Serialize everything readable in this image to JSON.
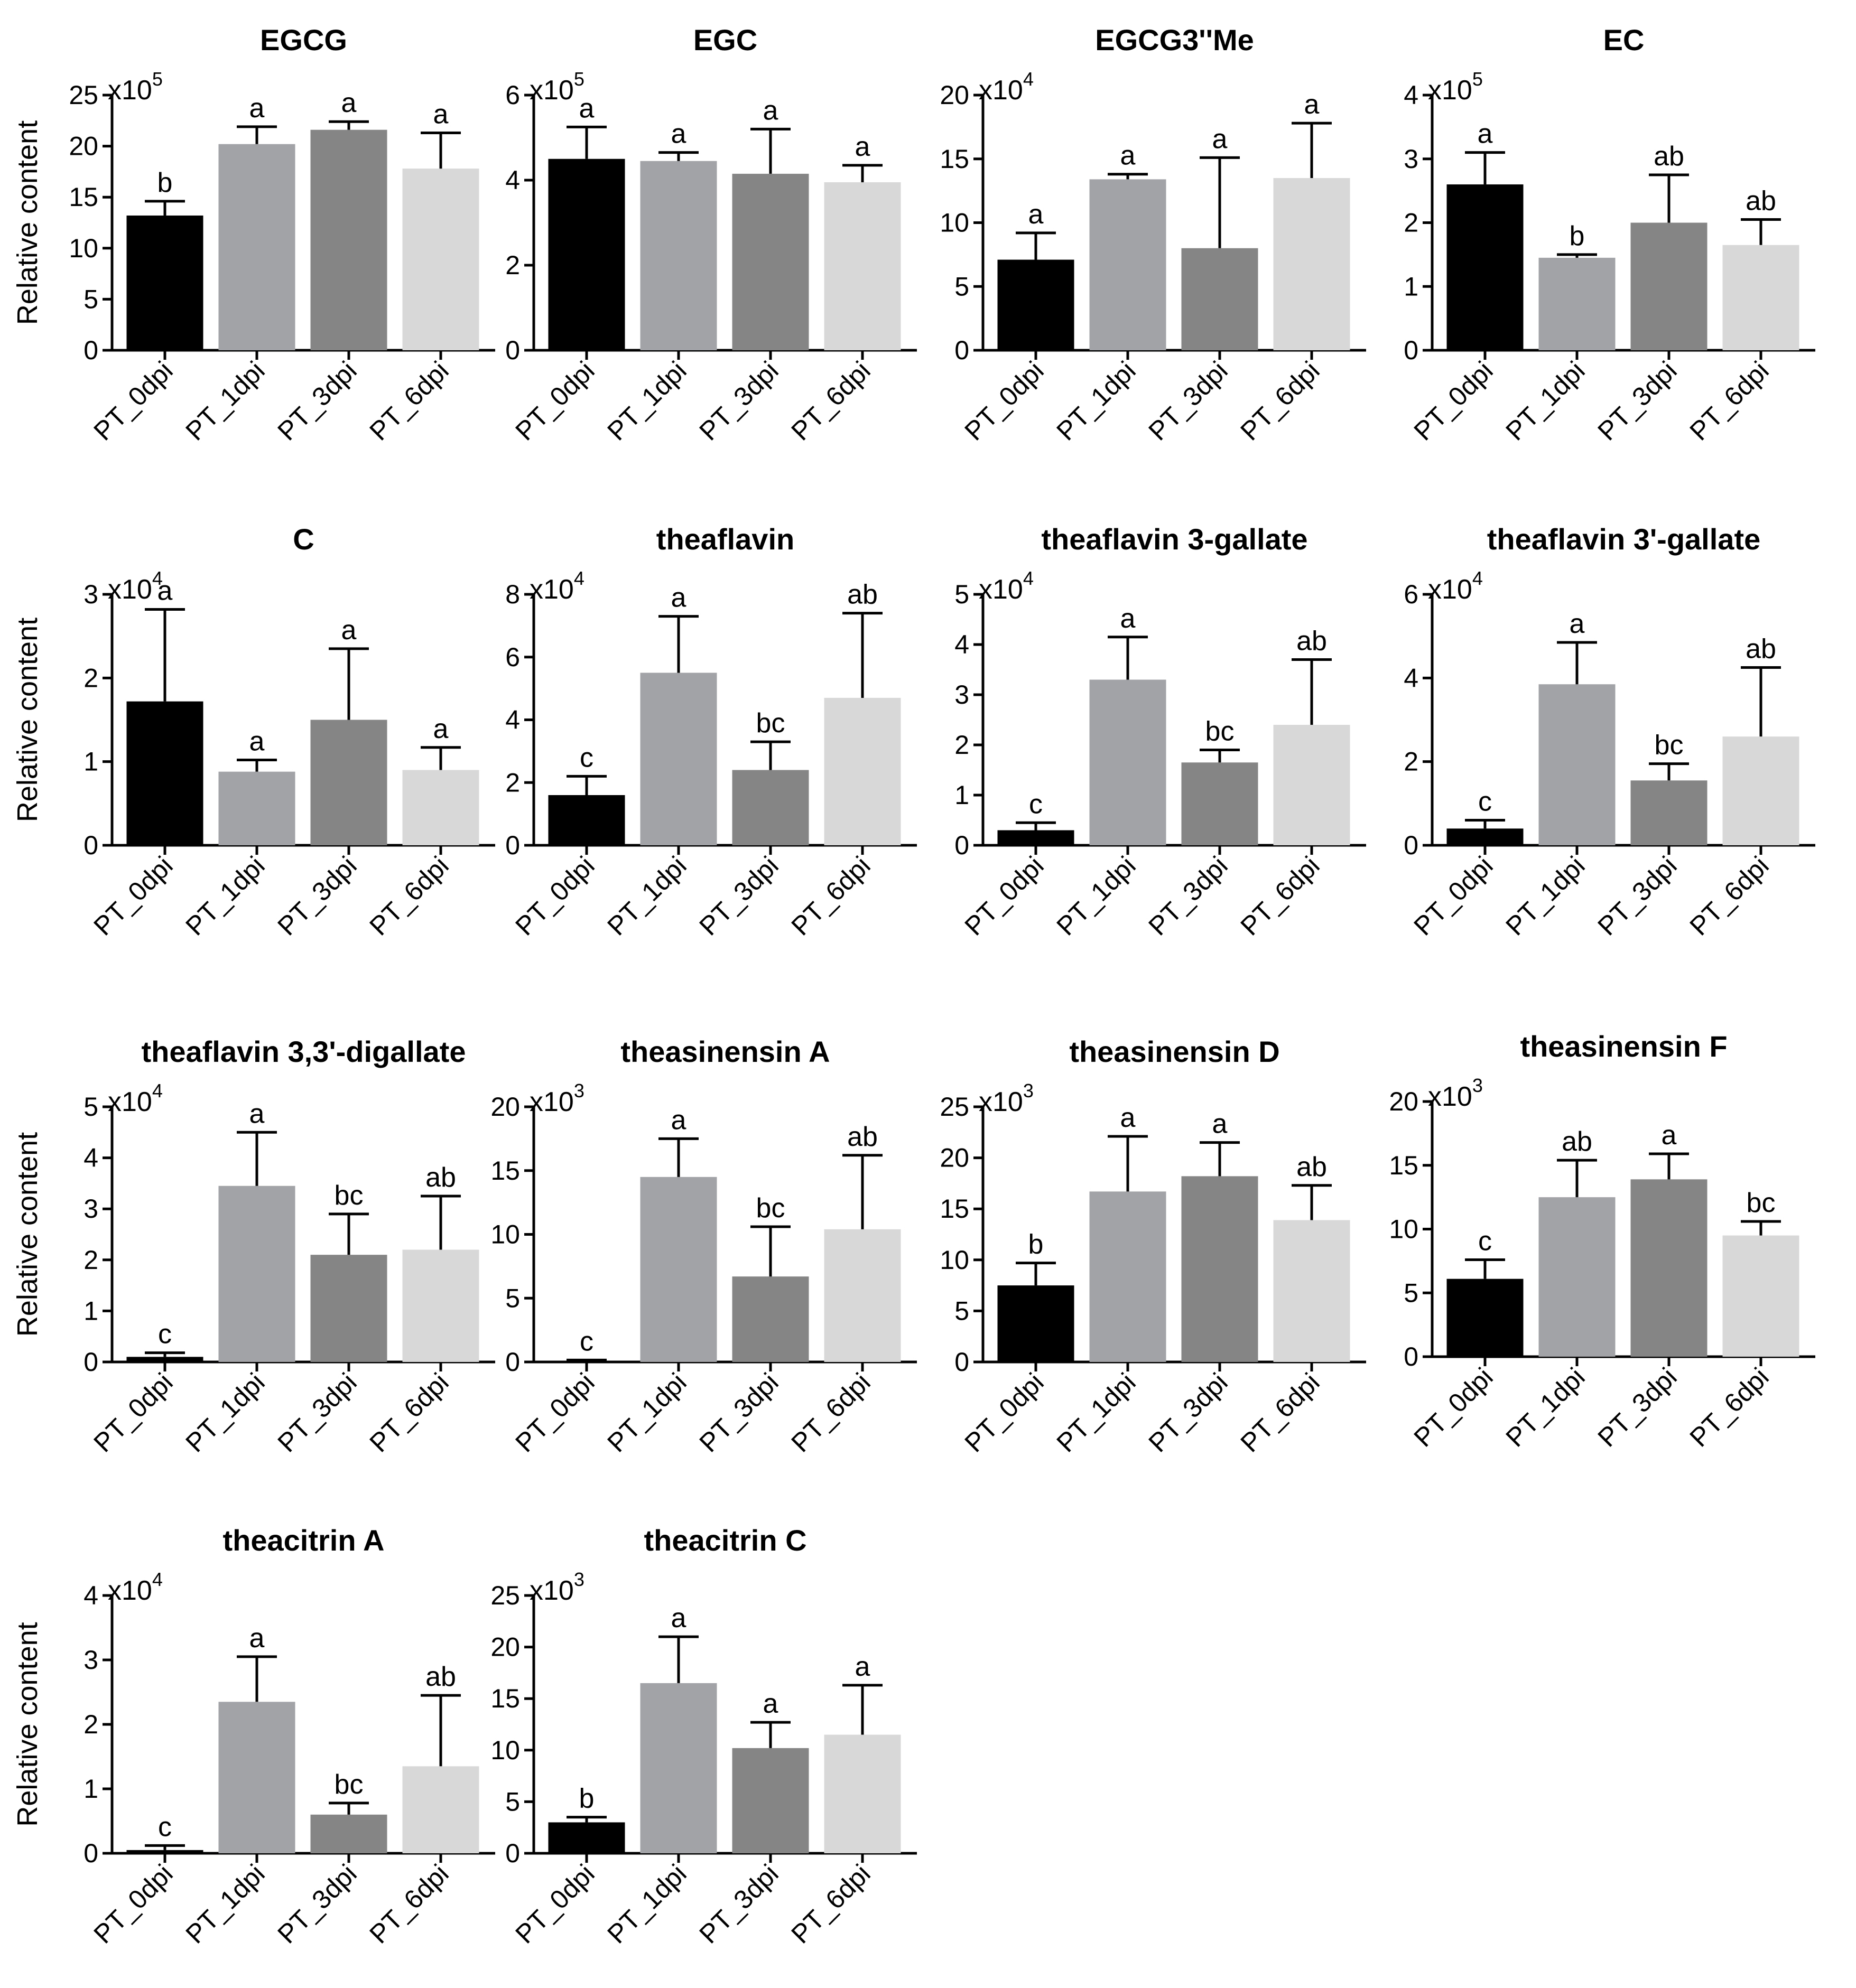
{
  "ylabel": "Relative content",
  "colors": [
    "#000000",
    "#a2a3a7",
    "#858585",
    "#d8d8d8"
  ],
  "chart_data": [
    {
      "type": "bar",
      "title": "EGCG",
      "multiplier_base": "x10",
      "multiplier_exp": "5",
      "categories": [
        "PT_0dpi",
        "PT_1dpi",
        "PT_3dpi",
        "PT_6dpi"
      ],
      "values": [
        13.2,
        20.2,
        21.6,
        17.8
      ],
      "errors": [
        1.4,
        1.7,
        0.8,
        3.5
      ],
      "letters": [
        "b",
        "a",
        "a",
        "a"
      ],
      "ylim": [
        0,
        25
      ],
      "yticks": [
        0,
        5,
        10,
        15,
        20,
        25
      ]
    },
    {
      "type": "bar",
      "title": "EGC",
      "multiplier_base": "x10",
      "multiplier_exp": "5",
      "categories": [
        "PT_0dpi",
        "PT_1dpi",
        "PT_3dpi",
        "PT_6dpi"
      ],
      "values": [
        4.5,
        4.45,
        4.15,
        3.95
      ],
      "errors": [
        0.75,
        0.2,
        1.05,
        0.4
      ],
      "letters": [
        "a",
        "a",
        "a",
        "a"
      ],
      "ylim": [
        0,
        6
      ],
      "yticks": [
        0,
        2,
        4,
        6
      ]
    },
    {
      "type": "bar",
      "title": "EGCG3''Me",
      "multiplier_base": "x10",
      "multiplier_exp": "4",
      "categories": [
        "PT_0dpi",
        "PT_1dpi",
        "PT_3dpi",
        "PT_6dpi"
      ],
      "values": [
        7.1,
        13.4,
        8.0,
        13.5
      ],
      "errors": [
        2.1,
        0.4,
        7.1,
        4.3
      ],
      "letters": [
        "a",
        "a",
        "a",
        "a"
      ],
      "ylim": [
        0,
        20
      ],
      "yticks": [
        0,
        5,
        10,
        15,
        20
      ]
    },
    {
      "type": "bar",
      "title": "EC",
      "multiplier_base": "x10",
      "multiplier_exp": "5",
      "categories": [
        "PT_0dpi",
        "PT_1dpi",
        "PT_3dpi",
        "PT_6dpi"
      ],
      "values": [
        2.6,
        1.45,
        2.0,
        1.65
      ],
      "errors": [
        0.5,
        0.05,
        0.75,
        0.4
      ],
      "letters": [
        "a",
        "b",
        "ab",
        "ab"
      ],
      "ylim": [
        0,
        4
      ],
      "yticks": [
        0,
        1,
        2,
        3,
        4
      ]
    },
    {
      "type": "bar",
      "title": "C",
      "multiplier_base": "x10",
      "multiplier_exp": "4",
      "categories": [
        "PT_0dpi",
        "PT_1dpi",
        "PT_3dpi",
        "PT_6dpi"
      ],
      "values": [
        1.72,
        0.88,
        1.5,
        0.9
      ],
      "errors": [
        1.1,
        0.14,
        0.85,
        0.27
      ],
      "letters": [
        "a",
        "a",
        "a",
        "a"
      ],
      "ylim": [
        0,
        3
      ],
      "yticks": [
        0,
        1,
        2,
        3
      ]
    },
    {
      "type": "bar",
      "title": "theaflavin",
      "multiplier_base": "x10",
      "multiplier_exp": "4",
      "categories": [
        "PT_0dpi",
        "PT_1dpi",
        "PT_3dpi",
        "PT_6dpi"
      ],
      "values": [
        1.6,
        5.5,
        2.4,
        4.7
      ],
      "errors": [
        0.6,
        1.8,
        0.9,
        2.7
      ],
      "letters": [
        "c",
        "a",
        "bc",
        "ab"
      ],
      "ylim": [
        0,
        8
      ],
      "yticks": [
        0,
        2,
        4,
        6,
        8
      ]
    },
    {
      "type": "bar",
      "title": "theaflavin 3-gallate",
      "multiplier_base": "x10",
      "multiplier_exp": "4",
      "categories": [
        "PT_0dpi",
        "PT_1dpi",
        "PT_3dpi",
        "PT_6dpi"
      ],
      "values": [
        0.3,
        3.3,
        1.65,
        2.4
      ],
      "errors": [
        0.15,
        0.85,
        0.25,
        1.3
      ],
      "letters": [
        "c",
        "a",
        "bc",
        "ab"
      ],
      "ylim": [
        0,
        5
      ],
      "yticks": [
        0,
        1,
        2,
        3,
        4,
        5
      ]
    },
    {
      "type": "bar",
      "title": "theaflavin 3'-gallate",
      "multiplier_base": "x10",
      "multiplier_exp": "4",
      "categories": [
        "PT_0dpi",
        "PT_1dpi",
        "PT_3dpi",
        "PT_6dpi"
      ],
      "values": [
        0.4,
        3.85,
        1.55,
        2.6
      ],
      "errors": [
        0.2,
        1.0,
        0.4,
        1.65
      ],
      "letters": [
        "c",
        "a",
        "bc",
        "ab"
      ],
      "ylim": [
        0,
        6
      ],
      "yticks": [
        0,
        2,
        4,
        6
      ]
    },
    {
      "type": "bar",
      "title": "theaflavin 3,3'-digallate",
      "multiplier_base": "x10",
      "multiplier_exp": "4",
      "categories": [
        "PT_0dpi",
        "PT_1dpi",
        "PT_3dpi",
        "PT_6dpi"
      ],
      "values": [
        0.1,
        3.45,
        2.1,
        2.2
      ],
      "errors": [
        0.08,
        1.05,
        0.8,
        1.05
      ],
      "letters": [
        "c",
        "a",
        "bc",
        "ab"
      ],
      "ylim": [
        0,
        5
      ],
      "yticks": [
        0,
        1,
        2,
        3,
        4,
        5
      ]
    },
    {
      "type": "bar",
      "title": "theasinensin A",
      "multiplier_base": "x10",
      "multiplier_exp": "3",
      "categories": [
        "PT_0dpi",
        "PT_1dpi",
        "PT_3dpi",
        "PT_6dpi"
      ],
      "values": [
        0.1,
        14.5,
        6.7,
        10.4
      ],
      "errors": [
        0.05,
        3.0,
        3.9,
        5.8
      ],
      "letters": [
        "c",
        "a",
        "bc",
        "ab"
      ],
      "ylim": [
        0,
        20
      ],
      "yticks": [
        0,
        5,
        10,
        15,
        20
      ]
    },
    {
      "type": "bar",
      "title": "theasinensin D",
      "multiplier_base": "x10",
      "multiplier_exp": "3",
      "categories": [
        "PT_0dpi",
        "PT_1dpi",
        "PT_3dpi",
        "PT_6dpi"
      ],
      "values": [
        7.5,
        16.7,
        18.2,
        13.9
      ],
      "errors": [
        2.2,
        5.4,
        3.3,
        3.4
      ],
      "letters": [
        "b",
        "a",
        "a",
        "ab"
      ],
      "ylim": [
        0,
        25
      ],
      "yticks": [
        0,
        5,
        10,
        15,
        20,
        25
      ]
    },
    {
      "type": "bar",
      "title": "theasinensin F",
      "multiplier_base": "x10",
      "multiplier_exp": "3",
      "categories": [
        "PT_0dpi",
        "PT_1dpi",
        "PT_3dpi",
        "PT_6dpi"
      ],
      "values": [
        6.1,
        12.5,
        13.9,
        9.5
      ],
      "errors": [
        1.5,
        2.9,
        2.0,
        1.1
      ],
      "letters": [
        "c",
        "ab",
        "a",
        "bc"
      ],
      "ylim": [
        0,
        20
      ],
      "yticks": [
        0,
        5,
        10,
        15,
        20
      ]
    },
    {
      "type": "bar",
      "title": "theacitrin A",
      "multiplier_base": "x10",
      "multiplier_exp": "4",
      "categories": [
        "PT_0dpi",
        "PT_1dpi",
        "PT_3dpi",
        "PT_6dpi"
      ],
      "values": [
        0.05,
        2.35,
        0.6,
        1.35
      ],
      "errors": [
        0.07,
        0.7,
        0.18,
        1.1
      ],
      "letters": [
        "c",
        "a",
        "bc",
        "ab"
      ],
      "ylim": [
        0,
        4
      ],
      "yticks": [
        0,
        1,
        2,
        3,
        4
      ]
    },
    {
      "type": "bar",
      "title": "theacitrin C",
      "multiplier_base": "x10",
      "multiplier_exp": "3",
      "categories": [
        "PT_0dpi",
        "PT_1dpi",
        "PT_3dpi",
        "PT_6dpi"
      ],
      "values": [
        3.0,
        16.5,
        10.2,
        11.5
      ],
      "errors": [
        0.5,
        4.5,
        2.5,
        4.8
      ],
      "letters": [
        "b",
        "a",
        "a",
        "a"
      ],
      "ylim": [
        0,
        25
      ],
      "yticks": [
        0,
        5,
        10,
        15,
        20,
        25
      ]
    }
  ]
}
